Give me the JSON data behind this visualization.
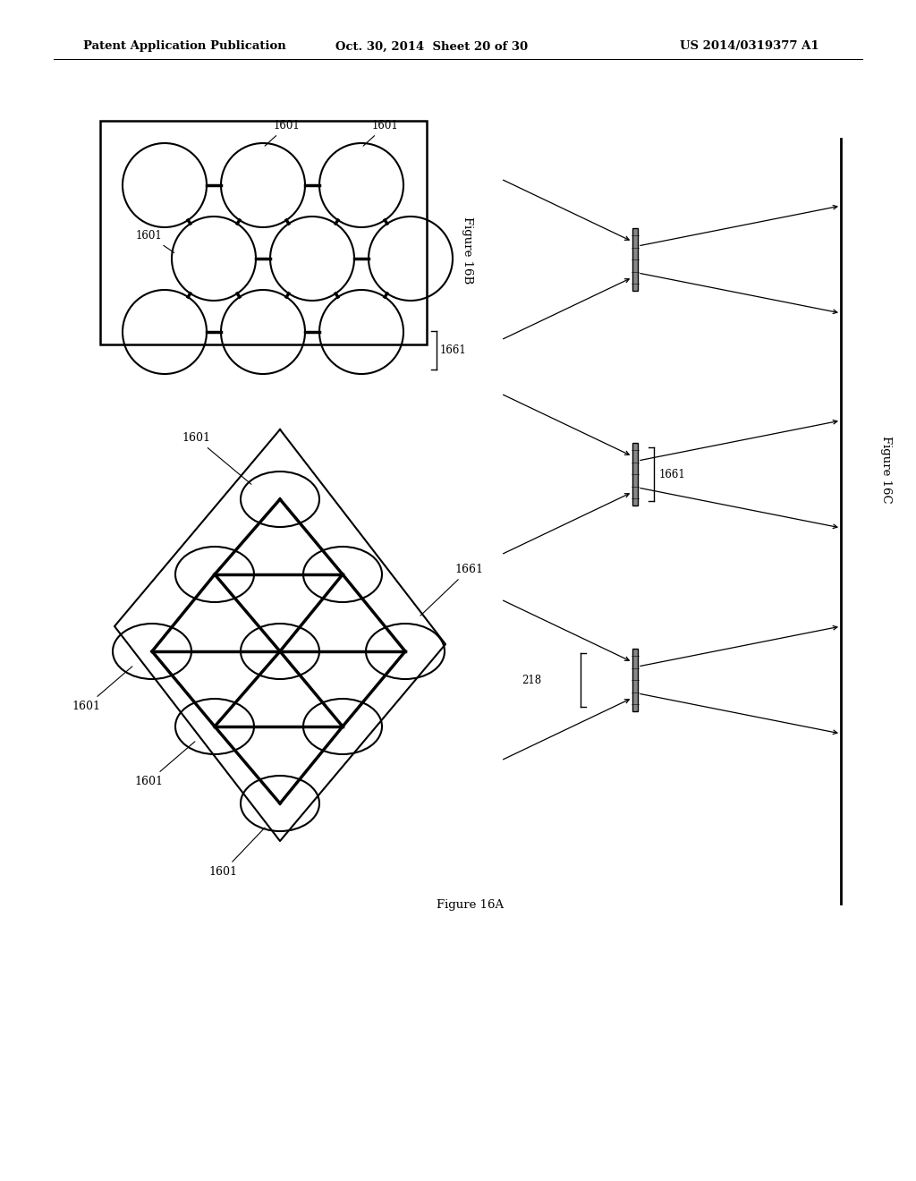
{
  "bg_color": "#ffffff",
  "header_left": "Patent Application Publication",
  "header_mid": "Oct. 30, 2014  Sheet 20 of 30",
  "header_right": "US 2014/0319377 A1",
  "fig16b_label": "Figure 16B",
  "fig16a_label": "Figure 16A",
  "fig16c_label": "Figure 16C",
  "label_1601": "1601",
  "label_1661": "1661",
  "label_218": "218"
}
